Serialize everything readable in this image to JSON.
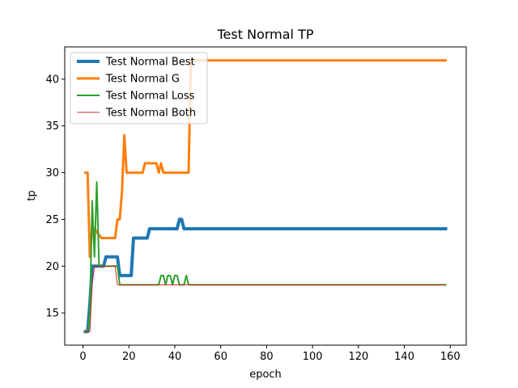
{
  "chart_data": {
    "type": "line",
    "title": "Test Normal TP",
    "xlabel": "epoch",
    "ylabel": "tp",
    "xlim": [
      -7.95,
      166.95
    ],
    "ylim": [
      11.55,
      43.45
    ],
    "xticks": [
      0,
      20,
      40,
      60,
      80,
      100,
      120,
      140,
      160
    ],
    "yticks": [
      15,
      20,
      25,
      30,
      35,
      40
    ],
    "grid": false,
    "legend_position": "upper-left",
    "series": [
      {
        "name": "Test Normal Best",
        "color": "#1f77b4",
        "line_width": 4,
        "x": [
          1,
          2,
          3,
          4,
          5,
          9,
          10,
          15,
          16,
          21,
          22,
          28,
          29,
          41,
          42,
          43,
          44,
          158
        ],
        "y": [
          13,
          13,
          16,
          20,
          20,
          20,
          21,
          21,
          19,
          19,
          23,
          23,
          24,
          24,
          25,
          25,
          24,
          24
        ]
      },
      {
        "name": "Test Normal G",
        "color": "#ff7f0e",
        "line_width": 3,
        "x": [
          1,
          2,
          3,
          4,
          5,
          8,
          9,
          14,
          15,
          16,
          17,
          18,
          19,
          26,
          27,
          32,
          33,
          34,
          35,
          46,
          47,
          158
        ],
        "y": [
          30,
          30,
          21,
          24,
          24,
          23,
          23,
          23,
          25,
          25,
          28,
          34,
          30,
          30,
          31,
          31,
          30,
          31,
          30,
          30,
          42,
          42
        ]
      },
      {
        "name": "Test Normal Loss",
        "color": "#2ca02c",
        "line_width": 2,
        "x": [
          1,
          2,
          3,
          4,
          5,
          6,
          7,
          14,
          15,
          16,
          33,
          34,
          35,
          36,
          37,
          38,
          39,
          40,
          41,
          42,
          43,
          44,
          45,
          46,
          158
        ],
        "y": [
          13,
          13,
          15,
          27,
          21,
          29,
          20,
          20,
          20,
          18,
          18,
          19,
          19,
          18,
          19,
          19,
          18,
          19,
          19,
          18,
          18,
          18,
          19,
          18,
          18
        ]
      },
      {
        "name": "Test Normal Both",
        "color": "#d62728",
        "line_width": 1,
        "x": [
          1,
          2,
          3,
          4,
          5,
          13,
          14,
          15,
          158
        ],
        "y": [
          13,
          13,
          13,
          18,
          20,
          20,
          20,
          18,
          18
        ]
      }
    ]
  }
}
